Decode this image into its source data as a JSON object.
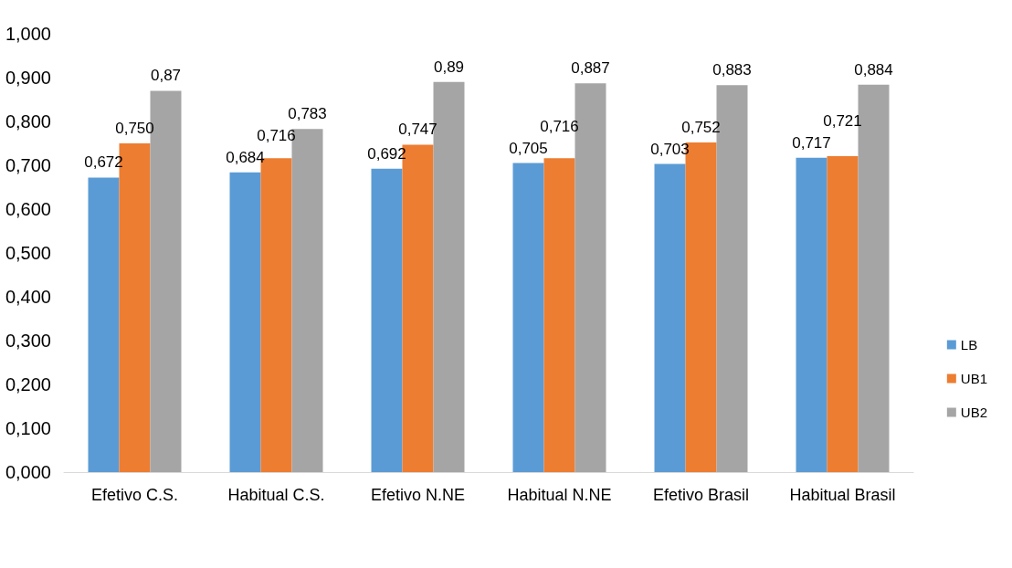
{
  "chart_data": {
    "type": "bar",
    "categories": [
      "Efetivo C.S.",
      "Habitual C.S.",
      "Efetivo N.NE",
      "Habitual N.NE",
      "Efetivo Brasil",
      "Habitual Brasil"
    ],
    "series": [
      {
        "name": "LB",
        "color": "#5b9bd5",
        "values": [
          0.672,
          0.684,
          0.692,
          0.705,
          0.703,
          0.717
        ],
        "value_labels": [
          "0,672",
          "0,684",
          "0,692",
          "0,705",
          "0,703",
          "0,717"
        ]
      },
      {
        "name": "UB1",
        "color": "#ed7d31",
        "values": [
          0.75,
          0.716,
          0.747,
          0.716,
          0.752,
          0.721
        ],
        "value_labels": [
          "0,750",
          "0,716",
          "0,747",
          "0,716",
          "0,752",
          "0,721"
        ]
      },
      {
        "name": "UB2",
        "color": "#a5a5a5",
        "values": [
          0.87,
          0.783,
          0.89,
          0.887,
          0.883,
          0.884
        ],
        "value_labels": [
          "0,87",
          "0,783",
          "0,89",
          "0,887",
          "0,883",
          "0,884"
        ]
      }
    ],
    "ylim": [
      0,
      1
    ],
    "yticks": [
      {
        "value": 0,
        "label": "0,000"
      },
      {
        "value": 0.1,
        "label": "0,100"
      },
      {
        "value": 0.2,
        "label": "0,200"
      },
      {
        "value": 0.3,
        "label": "0,300"
      },
      {
        "value": 0.4,
        "label": "0,400"
      },
      {
        "value": 0.5,
        "label": "0,500"
      },
      {
        "value": 0.6,
        "label": "0,600"
      },
      {
        "value": 0.7,
        "label": "0,700"
      },
      {
        "value": 0.8,
        "label": "0,800"
      },
      {
        "value": 0.9,
        "label": "0,900"
      },
      {
        "value": 1,
        "label": "1,000"
      }
    ],
    "grid": false,
    "legend": "right"
  }
}
